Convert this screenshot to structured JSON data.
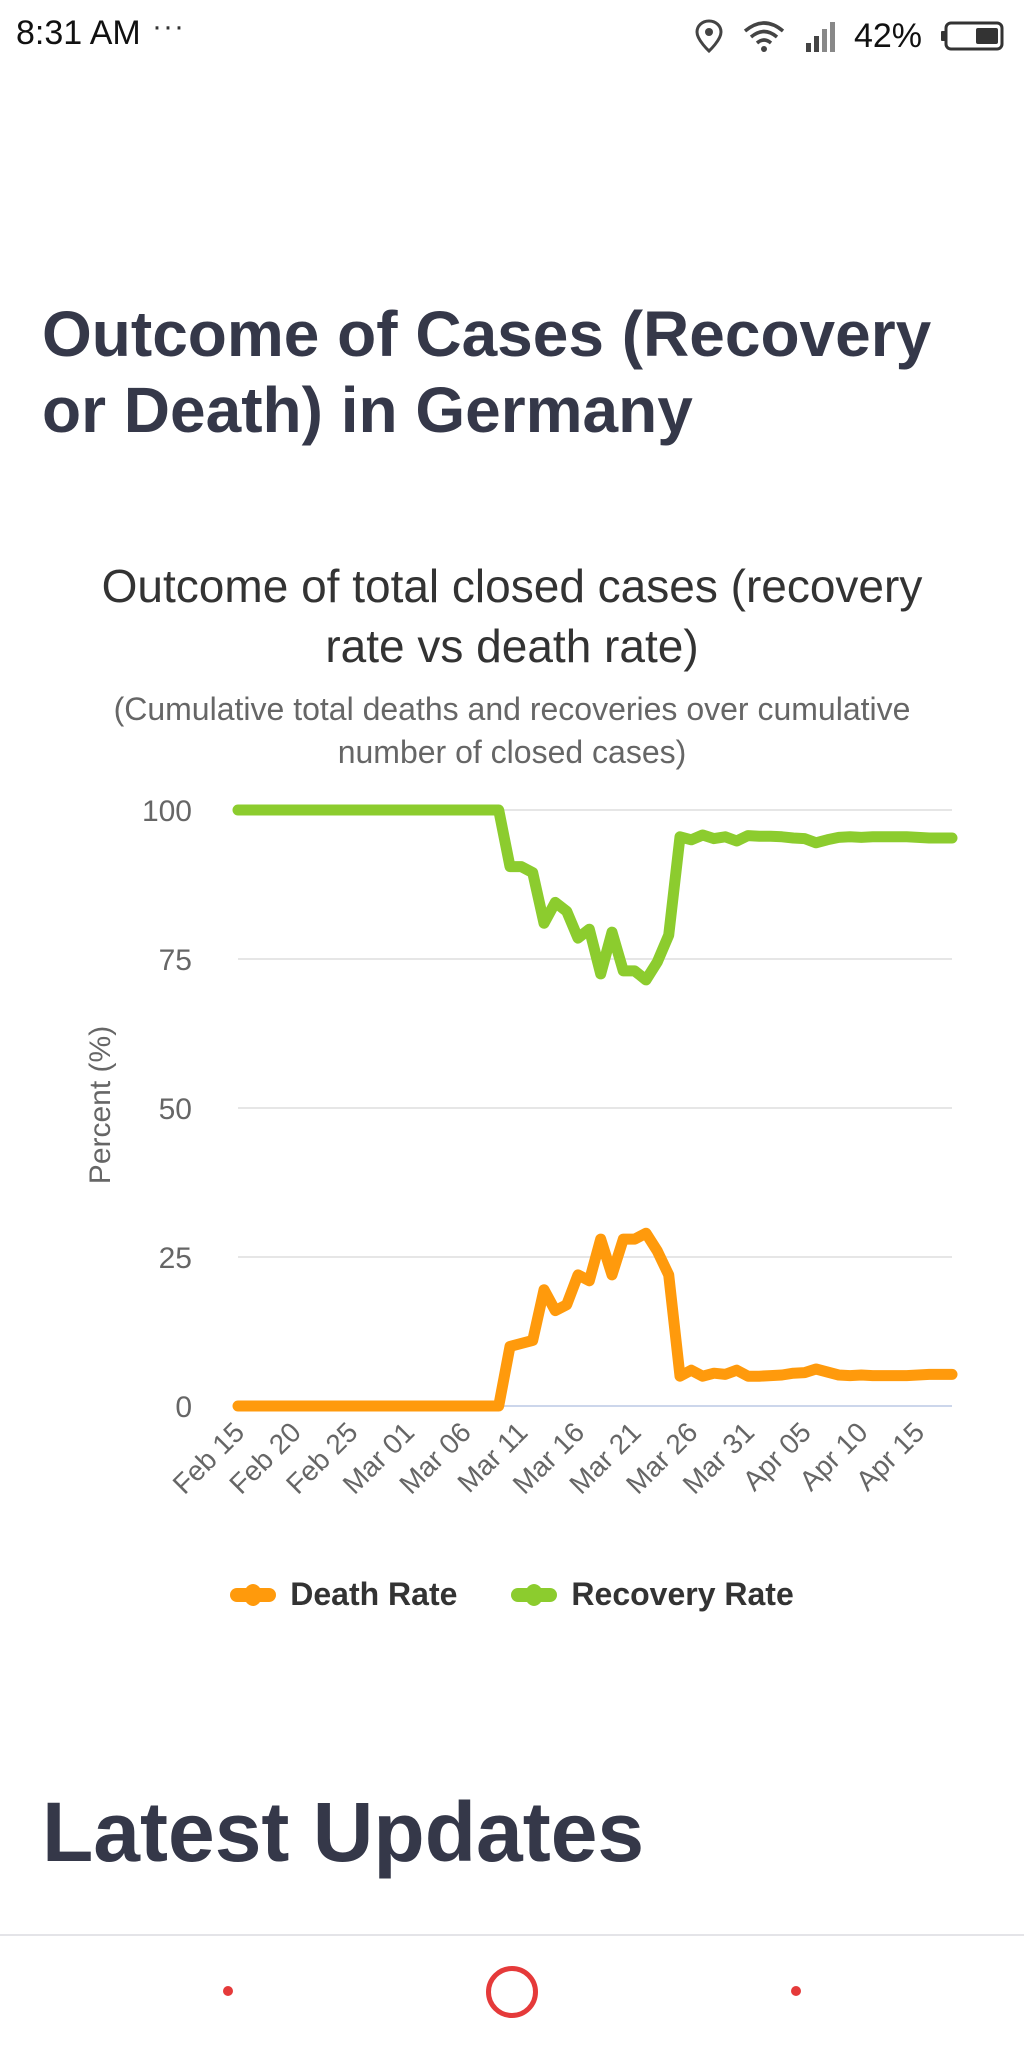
{
  "status_bar": {
    "time": "8:31 AM",
    "dots": "···",
    "battery": "42%",
    "icons": [
      "location-icon",
      "wifi-icon",
      "signal-icon",
      "battery-icon"
    ]
  },
  "page": {
    "title": "Outcome of Cases (Recovery or Death) in Germany",
    "section_title": "Latest Updates"
  },
  "colors": {
    "death": "#ff9a0c",
    "recovery": "#8ccc2e",
    "grid": "#e6e6e6",
    "axis": "#ccd6eb",
    "accent": "#e53a3a"
  },
  "chart_data": {
    "type": "line",
    "title": "Outcome of total closed cases (recovery rate vs death rate)",
    "subtitle": "(Cumulative total deaths and recoveries over cumulative number of closed cases)",
    "xlabel": "",
    "ylabel": "Percent (%)",
    "ylim": [
      0,
      100
    ],
    "yticks": [
      0,
      25,
      50,
      75,
      100
    ],
    "grid": true,
    "legend_position": "bottom",
    "categories": [
      "Feb 15",
      "Feb 16",
      "Feb 17",
      "Feb 18",
      "Feb 19",
      "Feb 20",
      "Feb 21",
      "Feb 22",
      "Feb 23",
      "Feb 24",
      "Feb 25",
      "Feb 26",
      "Feb 27",
      "Feb 28",
      "Feb 29",
      "Mar 01",
      "Mar 02",
      "Mar 03",
      "Mar 04",
      "Mar 05",
      "Mar 06",
      "Mar 07",
      "Mar 08",
      "Mar 09",
      "Mar 10",
      "Mar 11",
      "Mar 12",
      "Mar 13",
      "Mar 14",
      "Mar 15",
      "Mar 16",
      "Mar 17",
      "Mar 18",
      "Mar 19",
      "Mar 20",
      "Mar 21",
      "Mar 22",
      "Mar 23",
      "Mar 24",
      "Mar 25",
      "Mar 26",
      "Mar 27",
      "Mar 28",
      "Mar 29",
      "Mar 30",
      "Mar 31",
      "Apr 01",
      "Apr 02",
      "Apr 03",
      "Apr 04",
      "Apr 05",
      "Apr 06",
      "Apr 07",
      "Apr 08",
      "Apr 09",
      "Apr 10",
      "Apr 11",
      "Apr 12",
      "Apr 13",
      "Apr 14",
      "Apr 15",
      "Apr 16",
      "Apr 17",
      "Apr 18"
    ],
    "xtick_labels": [
      "Feb 15",
      "Feb 20",
      "Feb 25",
      "Mar 01",
      "Mar 06",
      "Mar 11",
      "Mar 16",
      "Mar 21",
      "Mar 26",
      "Mar 31",
      "Apr 05",
      "Apr 10",
      "Apr 15"
    ],
    "series": [
      {
        "name": "Death Rate",
        "color": "#ff9a0c",
        "values": [
          0,
          0,
          0,
          0,
          0,
          0,
          0,
          0,
          0,
          0,
          0,
          0,
          0,
          0,
          0,
          0,
          0,
          0,
          0,
          0,
          0,
          0,
          0,
          0,
          10,
          10.5,
          11,
          19.5,
          16,
          17,
          22,
          21,
          28,
          22,
          28,
          28,
          29,
          26,
          22,
          5,
          6,
          5,
          5.5,
          5.3,
          6,
          5,
          5,
          5.1,
          5.2,
          5.5,
          5.6,
          6.2,
          5.7,
          5.2,
          5.1,
          5.2,
          5.1,
          5.1,
          5.1,
          5.1,
          5.2,
          5.3,
          5.3,
          5.3
        ]
      },
      {
        "name": "Recovery Rate",
        "color": "#8ccc2e",
        "values": [
          100,
          100,
          100,
          100,
          100,
          100,
          100,
          100,
          100,
          100,
          100,
          100,
          100,
          100,
          100,
          100,
          100,
          100,
          100,
          100,
          100,
          100,
          100,
          100,
          90.5,
          90.5,
          89.5,
          81,
          84.5,
          83,
          78.5,
          80,
          72.5,
          79.5,
          73,
          73,
          71.5,
          74.5,
          79,
          95.5,
          95,
          95.8,
          95.2,
          95.5,
          94.8,
          95.7,
          95.6,
          95.6,
          95.5,
          95.3,
          95.2,
          94.5,
          95,
          95.4,
          95.5,
          95.4,
          95.5,
          95.5,
          95.5,
          95.5,
          95.4,
          95.3,
          95.3,
          95.3
        ]
      }
    ]
  }
}
